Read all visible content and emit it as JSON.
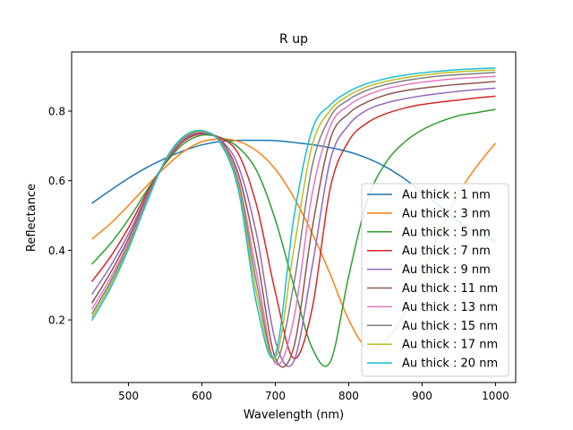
{
  "chart_data": {
    "type": "line",
    "title": "R up",
    "xlabel": "Wavelength (nm)",
    "ylabel": "Reflectance",
    "xlim": [
      422.5,
      1027.5
    ],
    "ylim": [
      0.02,
      0.97
    ],
    "xticks": [
      500,
      600,
      700,
      800,
      900,
      1000
    ],
    "yticks": [
      0.2,
      0.4,
      0.6,
      0.8
    ],
    "xtick_labels": [
      "500",
      "600",
      "700",
      "800",
      "900",
      "1000"
    ],
    "ytick_labels": [
      "0.2",
      "0.4",
      "0.6",
      "0.8"
    ],
    "grid": false,
    "legend_position": "lower-right",
    "x": [
      450,
      475,
      500,
      525,
      550,
      575,
      600,
      625,
      650,
      675,
      700,
      725,
      750,
      775,
      800,
      825,
      850,
      875,
      900,
      925,
      950,
      975,
      1000
    ],
    "series": [
      {
        "name": "Au thick : 1 nm",
        "color": "#1f77b4",
        "values": [
          0.535,
          0.572,
          0.607,
          0.638,
          0.664,
          0.686,
          0.703,
          0.713,
          0.716,
          0.716,
          0.715,
          0.71,
          0.704,
          0.695,
          0.683,
          0.665,
          0.64,
          0.607,
          0.567,
          0.524,
          0.482,
          0.448,
          0.425
        ]
      },
      {
        "name": "Au thick : 3 nm",
        "color": "#ff7f0e",
        "values": [
          0.432,
          0.476,
          0.529,
          0.585,
          0.639,
          0.684,
          0.712,
          0.72,
          0.713,
          0.685,
          0.633,
          0.553,
          0.45,
          0.33,
          0.2,
          0.12,
          0.14,
          0.215,
          0.335,
          0.458,
          0.565,
          0.643,
          0.708
        ]
      },
      {
        "name": "Au thick : 5 nm",
        "color": "#2ca02c",
        "values": [
          0.36,
          0.418,
          0.489,
          0.572,
          0.649,
          0.706,
          0.731,
          0.724,
          0.695,
          0.627,
          0.488,
          0.3,
          0.12,
          0.08,
          0.326,
          0.542,
          0.65,
          0.709,
          0.746,
          0.77,
          0.787,
          0.796,
          0.805
        ]
      },
      {
        "name": "Au thick : 7 nm",
        "color": "#d62728",
        "values": [
          0.31,
          0.38,
          0.465,
          0.565,
          0.652,
          0.713,
          0.735,
          0.723,
          0.676,
          0.525,
          0.28,
          0.09,
          0.23,
          0.58,
          0.714,
          0.766,
          0.792,
          0.808,
          0.819,
          0.826,
          0.832,
          0.838,
          0.843
        ]
      },
      {
        "name": "Au thick : 9 nm",
        "color": "#9467bd",
        "values": [
          0.273,
          0.353,
          0.447,
          0.558,
          0.654,
          0.716,
          0.737,
          0.718,
          0.64,
          0.44,
          0.14,
          0.08,
          0.35,
          0.66,
          0.76,
          0.803,
          0.823,
          0.835,
          0.844,
          0.851,
          0.857,
          0.862,
          0.866
        ]
      },
      {
        "name": "Au thick : 11 nm",
        "color": "#8c564b",
        "values": [
          0.248,
          0.334,
          0.434,
          0.552,
          0.655,
          0.719,
          0.739,
          0.716,
          0.617,
          0.38,
          0.09,
          0.12,
          0.46,
          0.72,
          0.793,
          0.826,
          0.846,
          0.858,
          0.866,
          0.872,
          0.877,
          0.881,
          0.885
        ]
      },
      {
        "name": "Au thick : 13 nm",
        "color": "#e377c2",
        "values": [
          0.23,
          0.319,
          0.424,
          0.547,
          0.656,
          0.721,
          0.74,
          0.713,
          0.6,
          0.33,
          0.075,
          0.2,
          0.56,
          0.758,
          0.816,
          0.846,
          0.864,
          0.875,
          0.883,
          0.889,
          0.894,
          0.897,
          0.9
        ]
      },
      {
        "name": "Au thick : 15 nm",
        "color": "#7f7f7f",
        "values": [
          0.217,
          0.308,
          0.416,
          0.543,
          0.657,
          0.723,
          0.741,
          0.711,
          0.59,
          0.3,
          0.08,
          0.3,
          0.64,
          0.784,
          0.833,
          0.86,
          0.876,
          0.887,
          0.895,
          0.901,
          0.905,
          0.908,
          0.911
        ]
      },
      {
        "name": "Au thick : 17 nm",
        "color": "#bcbd22",
        "values": [
          0.207,
          0.299,
          0.41,
          0.54,
          0.658,
          0.725,
          0.742,
          0.71,
          0.58,
          0.27,
          0.09,
          0.4,
          0.7,
          0.802,
          0.845,
          0.87,
          0.885,
          0.895,
          0.903,
          0.909,
          0.913,
          0.916,
          0.918
        ]
      },
      {
        "name": "Au thick : 20 nm",
        "color": "#17becf",
        "values": [
          0.198,
          0.29,
          0.404,
          0.538,
          0.659,
          0.727,
          0.744,
          0.708,
          0.57,
          0.24,
          0.1,
          0.49,
          0.745,
          0.818,
          0.856,
          0.879,
          0.893,
          0.903,
          0.91,
          0.915,
          0.919,
          0.922,
          0.924
        ]
      }
    ]
  }
}
